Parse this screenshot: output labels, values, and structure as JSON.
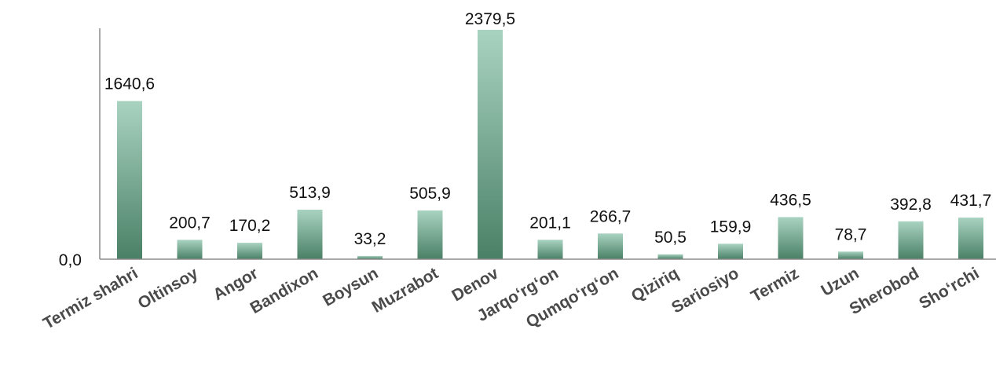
{
  "chart_data": {
    "type": "bar",
    "categories": [
      "Termiz shahri",
      "Oltinsoy",
      "Angor",
      "Bandixon",
      "Boysun",
      "Muzrabot",
      "Denov",
      "Jarqo‘rg‘on",
      "Qumqo‘rg‘on",
      "Qiziriq",
      "Sariosiyo",
      "Termiz",
      "Uzun",
      "Sherobod",
      "Sho‘rchi"
    ],
    "values": [
      1640.6,
      200.7,
      170.2,
      513.9,
      33.2,
      505.9,
      2379.5,
      201.1,
      266.7,
      50.5,
      159.9,
      436.5,
      78.7,
      392.8,
      431.7
    ],
    "value_labels": [
      "1640,6",
      "200,7",
      "170,2",
      "513,9",
      "33,2",
      "505,9",
      "2379,5",
      "201,1",
      "266,7",
      "50,5",
      "159,9",
      "436,5",
      "78,7",
      "392,8",
      "431,7"
    ],
    "y_tick_label": "0,0",
    "ylim": [
      0,
      2379.5
    ],
    "grid": false,
    "legend": false,
    "colors": {
      "bar_top": "#a9d3c1",
      "bar_bottom": "#4a8066",
      "axis": "#8c8c8c"
    }
  }
}
